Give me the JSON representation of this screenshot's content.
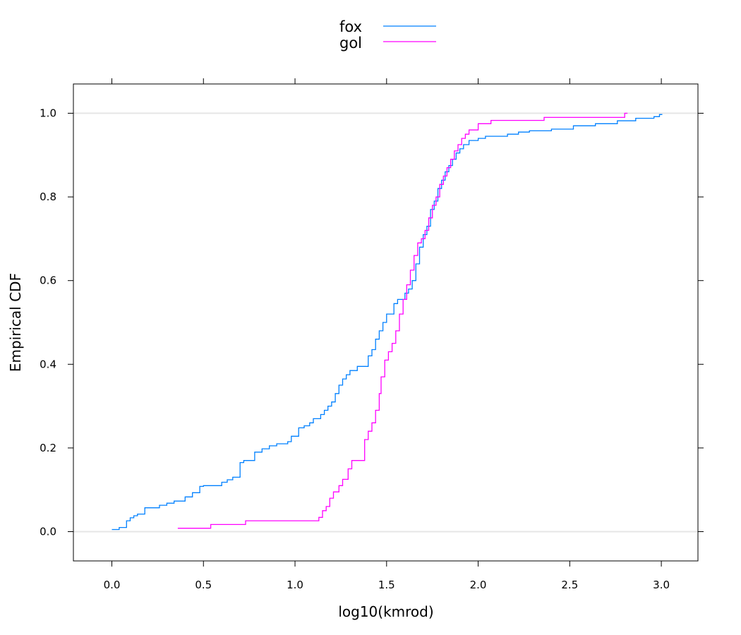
{
  "chart_data": {
    "type": "line",
    "xlabel": "log10(kmrod)",
    "ylabel": "Empirical CDF",
    "xlim": [
      -0.21,
      3.2
    ],
    "ylim": [
      -0.07,
      1.07
    ],
    "x_ticks": [
      "0.0",
      "0.5",
      "1.0",
      "1.5",
      "2.0",
      "2.5",
      "3.0"
    ],
    "x_tick_values": [
      0,
      0.5,
      1.0,
      1.5,
      2.0,
      2.5,
      3.0
    ],
    "y_ticks": [
      "0.0",
      "0.2",
      "0.4",
      "0.6",
      "0.8",
      "1.0"
    ],
    "y_tick_values": [
      0,
      0.2,
      0.4,
      0.6,
      0.8,
      1.0
    ],
    "reference_lines_y": [
      0,
      1
    ],
    "legend": {
      "placement": "top-center"
    },
    "series": [
      {
        "name": "fox",
        "color": "#0080ff",
        "x": [
          0.0,
          0.04,
          0.08,
          0.1,
          0.12,
          0.14,
          0.18,
          0.26,
          0.3,
          0.34,
          0.4,
          0.44,
          0.48,
          0.5,
          0.6,
          0.63,
          0.66,
          0.7,
          0.7,
          0.72,
          0.78,
          0.82,
          0.86,
          0.9,
          0.96,
          0.98,
          1.02,
          1.05,
          1.08,
          1.1,
          1.14,
          1.16,
          1.18,
          1.2,
          1.22,
          1.24,
          1.26,
          1.28,
          1.3,
          1.34,
          1.4,
          1.42,
          1.44,
          1.46,
          1.48,
          1.5,
          1.54,
          1.56,
          1.6,
          1.62,
          1.64,
          1.66,
          1.68,
          1.7,
          1.72,
          1.74,
          1.76,
          1.78,
          1.8,
          1.82,
          1.84,
          1.86,
          1.88,
          1.9,
          1.92,
          1.95,
          2.0,
          2.04,
          2.16,
          2.22,
          2.28,
          2.4,
          2.52,
          2.64,
          2.76,
          2.86,
          2.96,
          2.99
        ],
        "y": [
          0.005,
          0.01,
          0.026,
          0.033,
          0.038,
          0.042,
          0.057,
          0.063,
          0.068,
          0.073,
          0.083,
          0.093,
          0.108,
          0.11,
          0.118,
          0.124,
          0.13,
          0.16,
          0.165,
          0.17,
          0.19,
          0.198,
          0.205,
          0.21,
          0.215,
          0.228,
          0.248,
          0.253,
          0.26,
          0.27,
          0.28,
          0.29,
          0.3,
          0.31,
          0.33,
          0.35,
          0.365,
          0.375,
          0.385,
          0.395,
          0.42,
          0.435,
          0.46,
          0.48,
          0.5,
          0.52,
          0.545,
          0.555,
          0.57,
          0.58,
          0.6,
          0.64,
          0.68,
          0.71,
          0.73,
          0.77,
          0.79,
          0.82,
          0.84,
          0.86,
          0.875,
          0.89,
          0.905,
          0.915,
          0.925,
          0.935,
          0.94,
          0.945,
          0.95,
          0.955,
          0.958,
          0.962,
          0.97,
          0.975,
          0.982,
          0.988,
          0.992,
          0.997
        ]
      },
      {
        "name": "gol",
        "color": "#ff00ff",
        "x": [
          0.36,
          0.54,
          0.73,
          1.13,
          1.15,
          1.17,
          1.19,
          1.21,
          1.24,
          1.26,
          1.29,
          1.31,
          1.38,
          1.4,
          1.42,
          1.44,
          1.46,
          1.47,
          1.49,
          1.51,
          1.53,
          1.55,
          1.57,
          1.59,
          1.61,
          1.63,
          1.65,
          1.67,
          1.69,
          1.71,
          1.73,
          1.75,
          1.77,
          1.79,
          1.81,
          1.83,
          1.85,
          1.87,
          1.89,
          1.91,
          1.93,
          1.95,
          2.0,
          2.07,
          2.36,
          2.8
        ],
        "y": [
          0.008,
          0.017,
          0.026,
          0.034,
          0.05,
          0.06,
          0.08,
          0.095,
          0.11,
          0.125,
          0.15,
          0.17,
          0.22,
          0.24,
          0.26,
          0.29,
          0.33,
          0.37,
          0.41,
          0.43,
          0.45,
          0.48,
          0.52,
          0.555,
          0.59,
          0.625,
          0.66,
          0.69,
          0.7,
          0.72,
          0.75,
          0.78,
          0.8,
          0.83,
          0.85,
          0.87,
          0.89,
          0.91,
          0.925,
          0.94,
          0.95,
          0.96,
          0.975,
          0.983,
          0.99,
          1.0
        ]
      }
    ]
  }
}
